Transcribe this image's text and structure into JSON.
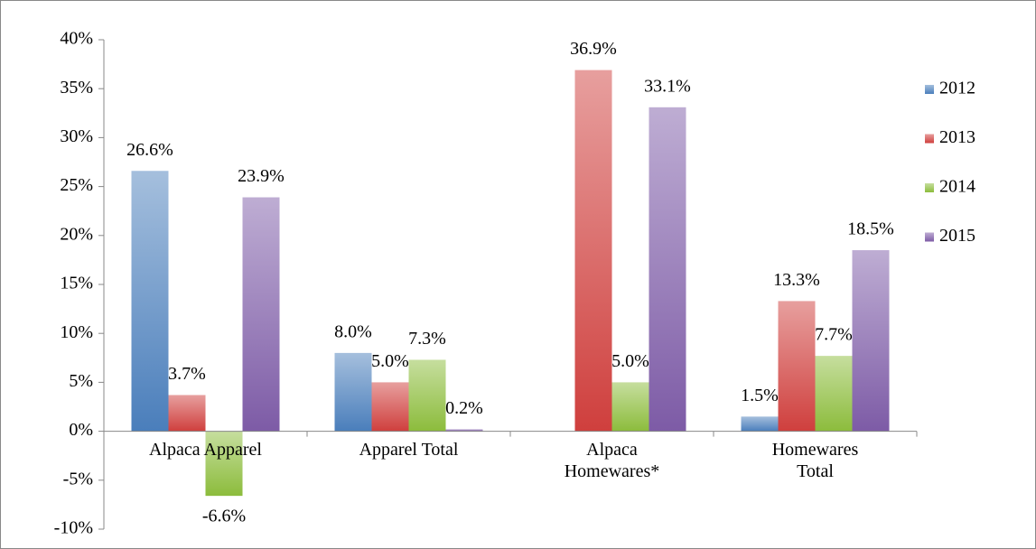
{
  "chart_data": {
    "type": "bar",
    "categories": [
      "Alpaca Apparel",
      "Apparel Total",
      "Alpaca Homewares*",
      "Homewares Total"
    ],
    "series": [
      {
        "name": "2012",
        "color": "#4a7ebb",
        "values": [
          26.6,
          8.0,
          null,
          1.5
        ],
        "value_labels": [
          "26.6%",
          "8.0%",
          null,
          "1.5%"
        ]
      },
      {
        "name": "2013",
        "color": "#cf3f3d",
        "values": [
          3.7,
          5.0,
          36.9,
          13.3
        ],
        "value_labels": [
          "3.7%",
          "5.0%",
          "36.9%",
          "13.3%"
        ]
      },
      {
        "name": "2014",
        "color": "#8cbc3c",
        "values": [
          -6.6,
          7.3,
          5.0,
          7.7
        ],
        "value_labels": [
          "-6.6%",
          "7.3%",
          "5.0%",
          "7.7%"
        ]
      },
      {
        "name": "2015",
        "color": "#7d5ba6",
        "values": [
          23.9,
          0.2,
          33.1,
          18.5
        ],
        "value_labels": [
          "23.9%",
          "0.2%",
          "33.1%",
          "18.5%"
        ]
      }
    ],
    "ylim": [
      -10,
      40
    ],
    "yticks": [
      {
        "value": -10,
        "label": "-10%"
      },
      {
        "value": -5,
        "label": "-5%"
      },
      {
        "value": 0,
        "label": "0%"
      },
      {
        "value": 5,
        "label": "5%"
      },
      {
        "value": 10,
        "label": "10%"
      },
      {
        "value": 15,
        "label": "15%"
      },
      {
        "value": 20,
        "label": "20%"
      },
      {
        "value": 25,
        "label": "25%"
      },
      {
        "value": 30,
        "label": "30%"
      },
      {
        "value": 35,
        "label": "35%"
      },
      {
        "value": 40,
        "label": "40%"
      }
    ],
    "legend": "right"
  }
}
